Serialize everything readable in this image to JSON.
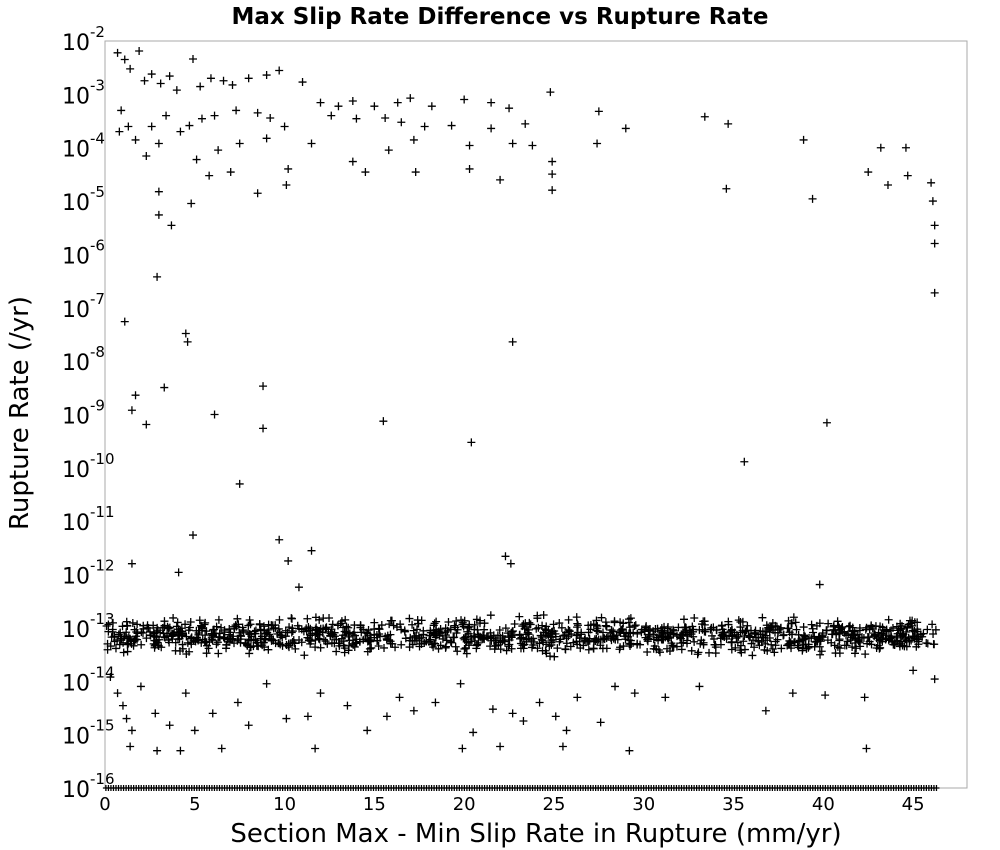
{
  "chart_data": {
    "type": "scatter",
    "title": "Max Slip Rate Difference vs Rupture Rate",
    "xlabel": "Section Max - Min Slip Rate in Rupture (mm/yr)",
    "ylabel": "Rupture Rate (/yr)",
    "xlim": [
      0,
      48
    ],
    "ylim_exponents": [
      -16,
      -2
    ],
    "yscale": "log",
    "grid": true,
    "marker": "plus",
    "x_ticks": [
      "0",
      "5",
      "10",
      "15",
      "20",
      "25",
      "30",
      "35",
      "40",
      "45"
    ],
    "y_ticks": [
      {
        "base": "10",
        "exp": "-2"
      },
      {
        "base": "10",
        "exp": "-3"
      },
      {
        "base": "10",
        "exp": "-4"
      },
      {
        "base": "10",
        "exp": "-5"
      },
      {
        "base": "10",
        "exp": "-6"
      },
      {
        "base": "10",
        "exp": "-7"
      },
      {
        "base": "10",
        "exp": "-8"
      },
      {
        "base": "10",
        "exp": "-9"
      },
      {
        "base": "10",
        "exp": "-10"
      },
      {
        "base": "10",
        "exp": "-11"
      },
      {
        "base": "10",
        "exp": "-12"
      },
      {
        "base": "10",
        "exp": "-13"
      },
      {
        "base": "10",
        "exp": "-14"
      },
      {
        "base": "10",
        "exp": "-15"
      },
      {
        "base": "10",
        "exp": "-16"
      }
    ],
    "series": [
      {
        "points": [
          [
            0.7,
            0.006
          ],
          [
            1.1,
            0.0045
          ],
          [
            1.9,
            0.0065
          ],
          [
            1.4,
            0.003
          ],
          [
            2.2,
            0.0018
          ],
          [
            2.6,
            0.0024
          ],
          [
            3.1,
            0.0016
          ],
          [
            3.6,
            0.0022
          ],
          [
            4.0,
            0.0012
          ],
          [
            4.9,
            0.0046
          ],
          [
            5.3,
            0.0014
          ],
          [
            5.9,
            0.002
          ],
          [
            6.6,
            0.0018
          ],
          [
            7.1,
            0.0015
          ],
          [
            8.0,
            0.002
          ],
          [
            9.0,
            0.0023
          ],
          [
            9.7,
            0.0028
          ],
          [
            11.0,
            0.0017
          ],
          [
            12.0,
            0.0007
          ],
          [
            13.0,
            0.0006
          ],
          [
            13.8,
            0.00075
          ],
          [
            15.0,
            0.0006
          ],
          [
            16.3,
            0.0007
          ],
          [
            17.0,
            0.00085
          ],
          [
            18.2,
            0.0006
          ],
          [
            20.0,
            0.0008
          ],
          [
            21.5,
            0.0007
          ],
          [
            22.5,
            0.00055
          ],
          [
            24.8,
            0.0011
          ],
          [
            0.9,
            0.0005
          ],
          [
            1.3,
            0.00025
          ],
          [
            2.6,
            0.00025
          ],
          [
            3.4,
            0.0004
          ],
          [
            4.7,
            0.00026
          ],
          [
            5.4,
            0.00035
          ],
          [
            6.1,
            0.0004
          ],
          [
            7.3,
            0.0005
          ],
          [
            8.5,
            0.00045
          ],
          [
            9.2,
            0.00036
          ],
          [
            10.0,
            0.00025
          ],
          [
            12.6,
            0.0004
          ],
          [
            14.0,
            0.00035
          ],
          [
            15.6,
            0.00036
          ],
          [
            16.5,
            0.0003
          ],
          [
            17.8,
            0.00025
          ],
          [
            19.3,
            0.00026
          ],
          [
            21.5,
            0.00023
          ],
          [
            23.4,
            0.00028
          ],
          [
            27.5,
            0.00048
          ],
          [
            29.0,
            0.00023
          ],
          [
            33.4,
            0.00038
          ],
          [
            34.7,
            0.00028
          ],
          [
            0.8,
            0.0002
          ],
          [
            1.7,
            0.00014
          ],
          [
            2.3,
            7e-05
          ],
          [
            3.0,
            0.00012
          ],
          [
            4.2,
            0.0002
          ],
          [
            5.1,
            6e-05
          ],
          [
            6.3,
            9e-05
          ],
          [
            7.5,
            0.00012
          ],
          [
            9.0,
            0.00015
          ],
          [
            11.5,
            0.00012
          ],
          [
            13.8,
            5.5e-05
          ],
          [
            15.8,
            9e-05
          ],
          [
            17.2,
            0.00014
          ],
          [
            20.3,
            0.00011
          ],
          [
            22.7,
            0.00012
          ],
          [
            23.8,
            0.00011
          ],
          [
            24.9,
            5.5e-05
          ],
          [
            27.4,
            0.00012
          ],
          [
            38.9,
            0.00014
          ],
          [
            43.2,
            0.0001
          ],
          [
            44.6,
            0.0001
          ],
          [
            5.8,
            3e-05
          ],
          [
            7.0,
            3.5e-05
          ],
          [
            10.2,
            4e-05
          ],
          [
            14.5,
            3.5e-05
          ],
          [
            17.3,
            3.5e-05
          ],
          [
            20.3,
            4e-05
          ],
          [
            22.0,
            2.5e-05
          ],
          [
            24.9,
            3.2e-05
          ],
          [
            42.5,
            3.5e-05
          ],
          [
            43.6,
            2e-05
          ],
          [
            44.7,
            3e-05
          ],
          [
            46.0,
            2.2e-05
          ],
          [
            3.0,
            1.5e-05
          ],
          [
            4.8,
            9e-06
          ],
          [
            8.5,
            1.4e-05
          ],
          [
            10.1,
            2e-05
          ],
          [
            24.9,
            1.6e-05
          ],
          [
            34.6,
            1.7e-05
          ],
          [
            39.4,
            1.1e-05
          ],
          [
            46.1,
            1e-05
          ],
          [
            3.0,
            5.5e-06
          ],
          [
            3.7,
            3.5e-06
          ],
          [
            46.2,
            3.5e-06
          ],
          [
            46.2,
            1.6e-06
          ],
          [
            2.9,
            3.8e-07
          ],
          [
            46.2,
            1.9e-07
          ],
          [
            1.1,
            5.5e-08
          ],
          [
            4.5,
            3.3e-08
          ],
          [
            4.6,
            2.3e-08
          ],
          [
            22.7,
            2.3e-08
          ],
          [
            1.7,
            2.3e-09
          ],
          [
            3.3,
            3.2e-09
          ],
          [
            8.8,
            3.4e-09
          ],
          [
            1.5,
            1.2e-09
          ],
          [
            2.3,
            6.5e-10
          ],
          [
            6.1,
            1e-09
          ],
          [
            8.8,
            5.5e-10
          ],
          [
            15.5,
            7.5e-10
          ],
          [
            20.4,
            3e-10
          ],
          [
            40.2,
            7e-10
          ],
          [
            35.6,
            1.3e-10
          ],
          [
            7.5,
            5e-11
          ],
          [
            4.9,
            5.5e-12
          ],
          [
            9.7,
            4.5e-12
          ],
          [
            10.2,
            1.8e-12
          ],
          [
            11.5,
            2.8e-12
          ],
          [
            1.5,
            1.6e-12
          ],
          [
            4.1,
            1.1e-12
          ],
          [
            10.8,
            5.8e-13
          ],
          [
            22.3,
            2.2e-12
          ],
          [
            22.6,
            1.6e-12
          ],
          [
            39.8,
            6.5e-13
          ],
          [
            0.3,
            1.2e-14
          ],
          [
            0.7,
            6e-15
          ],
          [
            1.0,
            3.5e-15
          ],
          [
            1.2,
            2e-15
          ],
          [
            1.5,
            1.2e-15
          ],
          [
            2.0,
            8e-15
          ],
          [
            2.8,
            2.5e-15
          ],
          [
            3.6,
            1.5e-15
          ],
          [
            4.5,
            6e-15
          ],
          [
            5.0,
            1.2e-15
          ],
          [
            6.0,
            2.5e-15
          ],
          [
            7.4,
            4e-15
          ],
          [
            8.0,
            1.5e-15
          ],
          [
            9.0,
            9e-15
          ],
          [
            10.1,
            2e-15
          ],
          [
            11.3,
            2.2e-15
          ],
          [
            12.0,
            6e-15
          ],
          [
            13.5,
            3.5e-15
          ],
          [
            14.6,
            1.2e-15
          ],
          [
            15.7,
            2.2e-15
          ],
          [
            16.4,
            5e-15
          ],
          [
            17.2,
            2.8e-15
          ],
          [
            18.4,
            4e-15
          ],
          [
            19.8,
            9e-15
          ],
          [
            20.5,
            1.1e-15
          ],
          [
            21.6,
            3e-15
          ],
          [
            22.0,
            6e-16
          ],
          [
            22.7,
            2.5e-15
          ],
          [
            23.3,
            1.8e-15
          ],
          [
            24.2,
            4e-15
          ],
          [
            25.1,
            2.2e-15
          ],
          [
            25.7,
            1.2e-15
          ],
          [
            26.3,
            5e-15
          ],
          [
            27.6,
            1.7e-15
          ],
          [
            28.4,
            8e-15
          ],
          [
            29.5,
            6e-15
          ],
          [
            31.2,
            5e-15
          ],
          [
            33.1,
            8e-15
          ],
          [
            36.8,
            2.8e-15
          ],
          [
            38.3,
            6e-15
          ],
          [
            40.1,
            5.5e-15
          ],
          [
            42.3,
            5e-15
          ],
          [
            45.0,
            1.6e-14
          ],
          [
            46.2,
            1.1e-14
          ],
          [
            1.4,
            6e-16
          ],
          [
            2.9,
            5e-16
          ],
          [
            4.2,
            5e-16
          ],
          [
            6.5,
            5.5e-16
          ],
          [
            11.7,
            5.5e-16
          ],
          [
            19.9,
            5.5e-16
          ],
          [
            25.5,
            6e-16
          ],
          [
            29.2,
            5e-16
          ],
          [
            42.4,
            5.5e-16
          ]
        ]
      }
    ],
    "dense_band": {
      "xmin": 0.05,
      "xmax": 46.3,
      "ymin": 2.5e-14,
      "ymax": 2e-13,
      "count": 1300
    },
    "floor_row": {
      "y": 1e-16,
      "xmin": 0.05,
      "xmax": 46.3,
      "count": 330
    }
  }
}
